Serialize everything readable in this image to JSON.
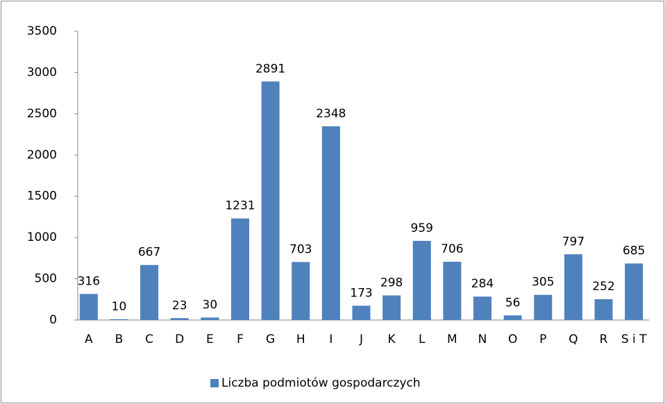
{
  "chart_data": {
    "type": "bar",
    "categories": [
      "A",
      "B",
      "C",
      "D",
      "E",
      "F",
      "G",
      "H",
      "I",
      "J",
      "K",
      "L",
      "M",
      "N",
      "O",
      "P",
      "Q",
      "R",
      "S i T"
    ],
    "series": [
      {
        "name": "Liczba podmiotów gospodarczych",
        "color": "#4f81bd",
        "values": [
          316,
          10,
          667,
          23,
          30,
          1231,
          2891,
          703,
          2348,
          173,
          298,
          959,
          706,
          284,
          56,
          305,
          797,
          252,
          685
        ]
      }
    ],
    "ylim": [
      0,
      3500
    ],
    "yticks": [
      0,
      500,
      1000,
      1500,
      2000,
      2500,
      3000,
      3500
    ],
    "grid": false,
    "legend": "bottom",
    "data_labels": true
  }
}
